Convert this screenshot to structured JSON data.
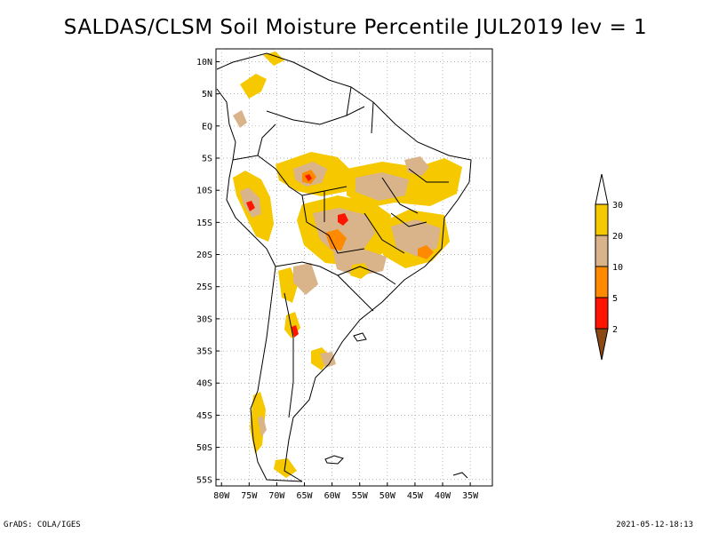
{
  "title": "SALDAS/CLSM Soil Moisture Percentile JUL2019 lev = 1",
  "map": {
    "region": "South America",
    "lon_range": [
      -81,
      -31
    ],
    "lat_range": [
      -56,
      12
    ],
    "grid": "dotted",
    "lat_ticks": [
      "10N",
      "5N",
      "EQ",
      "5S",
      "10S",
      "15S",
      "20S",
      "25S",
      "30S",
      "35S",
      "40S",
      "45S",
      "50S",
      "55S"
    ],
    "lon_ticks": [
      "80W",
      "75W",
      "70W",
      "65W",
      "60W",
      "55W",
      "50W",
      "45W",
      "40W",
      "35W"
    ]
  },
  "legend": {
    "levels": [
      "30",
      "20",
      "10",
      "5",
      "2"
    ],
    "colors": {
      "above_30": "#ffffff",
      "20_30": "#f5c800",
      "10_20": "#d9b48a",
      "5_10": "#ff8a00",
      "2_5": "#ff1400",
      "below_2": "#8b4a14"
    }
  },
  "footer": {
    "left": "GrADS: COLA/IGES",
    "right": "2021-05-12-18:13"
  }
}
